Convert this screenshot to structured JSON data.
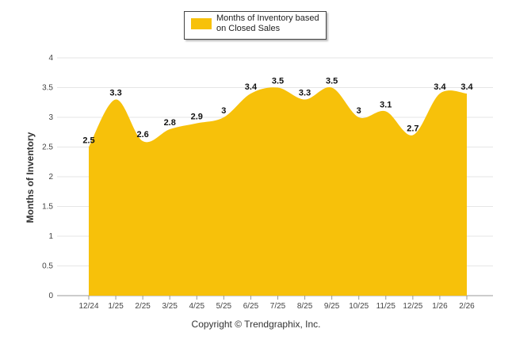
{
  "chart_data": {
    "type": "area",
    "title": "",
    "xlabel": "",
    "ylabel": "Months of Inventory",
    "ylim": [
      0,
      4
    ],
    "yticks": [
      0,
      0.5,
      1,
      1.5,
      2,
      2.5,
      3,
      3.5,
      4
    ],
    "ytick_labels": [
      "0",
      "0.5",
      "1",
      "1.5",
      "2",
      "2.5",
      "3",
      "3.5",
      "4"
    ],
    "categories": [
      "12/24",
      "1/25",
      "2/25",
      "3/25",
      "4/25",
      "5/25",
      "6/25",
      "7/25",
      "8/25",
      "9/25",
      "10/25",
      "11/25",
      "12/25",
      "1/26",
      "2/26"
    ],
    "series": [
      {
        "name": "Months of Inventory based on Closed Sales",
        "color": "#f7c10a",
        "values": [
          2.5,
          3.3,
          2.6,
          2.8,
          2.9,
          3,
          3.4,
          3.5,
          3.3,
          3.5,
          3,
          3.1,
          2.7,
          3.4,
          3.4
        ],
        "labels": [
          "2.5",
          "3.3",
          "2.6",
          "2.8",
          "2.9",
          "3",
          "3.4",
          "3.5",
          "3.3",
          "3.5",
          "3",
          "3.1",
          "2.7",
          "3.4",
          "3.4"
        ]
      }
    ],
    "legend": "top-center",
    "grid": true
  },
  "legend_label": "Months of Inventory based on Closed Sales",
  "copyright": "Copyright © Trendgraphix, Inc."
}
